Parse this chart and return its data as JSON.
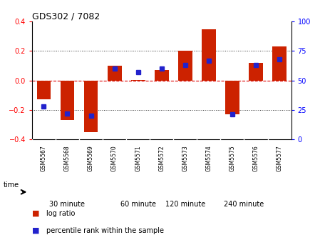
{
  "title": "GDS302 / 7082",
  "samples": [
    "GSM5567",
    "GSM5568",
    "GSM5569",
    "GSM5570",
    "GSM5571",
    "GSM5572",
    "GSM5573",
    "GSM5574",
    "GSM5575",
    "GSM5576",
    "GSM5577"
  ],
  "log_ratios": [
    -0.13,
    -0.27,
    -0.35,
    0.1,
    0.005,
    0.07,
    0.2,
    0.35,
    -0.23,
    0.12,
    0.23
  ],
  "percentile_ranks": [
    28,
    22,
    20,
    60,
    57,
    60,
    63,
    67,
    21,
    63,
    68
  ],
  "groups": [
    {
      "label": "30 minute",
      "start": 0,
      "end": 3,
      "color": "#ccffcc"
    },
    {
      "label": "60 minute",
      "start": 3,
      "end": 6,
      "color": "#aaffaa"
    },
    {
      "label": "120 minute",
      "start": 6,
      "end": 7,
      "color": "#77ee77"
    },
    {
      "label": "240 minute",
      "start": 7,
      "end": 11,
      "color": "#44cc44"
    }
  ],
  "ylim_left": [
    -0.4,
    0.4
  ],
  "ylim_right": [
    0,
    100
  ],
  "yticks_left": [
    -0.4,
    -0.2,
    0.0,
    0.2,
    0.4
  ],
  "yticks_right": [
    0,
    25,
    50,
    75,
    100
  ],
  "bar_color": "#cc2200",
  "dot_color": "#2222cc",
  "zero_line_color": "#dd0000",
  "dotted_color": "#333333",
  "bg_color": "#ffffff",
  "plot_bg": "#ffffff",
  "label_bg": "#dddddd",
  "n_samples": 11,
  "legend_labels": [
    "log ratio",
    "percentile rank within the sample"
  ]
}
